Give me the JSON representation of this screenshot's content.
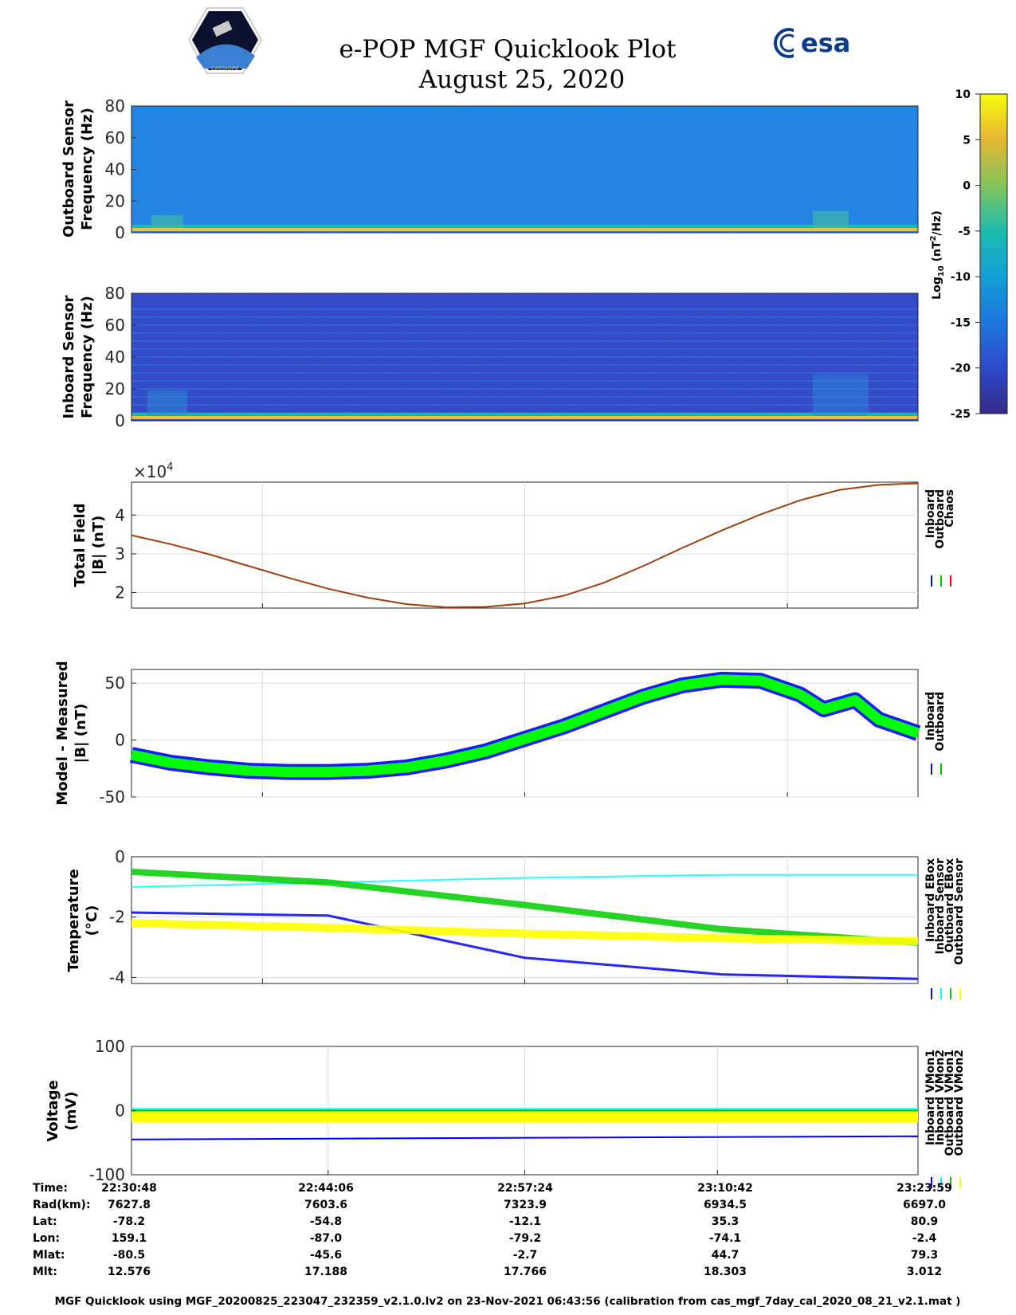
{
  "header": {
    "title": "e-POP MGF Quicklook Plot",
    "date": "August 25, 2020",
    "logo_left_text": "CASSIOPE",
    "logo_right_text": "esa"
  },
  "colorbar": {
    "label": "Log",
    "label_sub": "10",
    "label_units": "(nT",
    "label_sup": "2",
    "label_end": "/Hz)",
    "ticks": [
      "10",
      "5",
      "0",
      "-5",
      "-10",
      "-15",
      "-20",
      "-25"
    ],
    "range": [
      -25,
      10
    ]
  },
  "footer": "MGF Quicklook using MGF_20200825_223047_232359_v2.1.0.lv2 on 23-Nov-2021 06:43:56 (calibration from cas_mgf_7day_cal_2020_08_21_v2.1.mat )",
  "table": {
    "row_labels": [
      "Time:",
      "Rad(km):",
      "Lat:",
      "Lon:",
      "Mlat:",
      "Mlt:"
    ],
    "columns": [
      [
        "22:30:48",
        "7627.8",
        "-78.2",
        "159.1",
        "-80.5",
        "12.576"
      ],
      [
        "22:44:06",
        "7603.6",
        "-54.8",
        "-87.0",
        "-45.6",
        "17.188"
      ],
      [
        "22:57:24",
        "7323.9",
        "-12.1",
        "-79.2",
        "-2.7",
        "17.766"
      ],
      [
        "23:10:42",
        "6934.5",
        "35.3",
        "-74.1",
        "44.7",
        "18.303"
      ],
      [
        "23:23:59",
        "6697.0",
        "80.9",
        "-2.4",
        "79.3",
        "3.012"
      ]
    ]
  },
  "chart_data": [
    {
      "type": "heatmap",
      "ylabel_line1": "Outboard Sensor",
      "ylabel_line2": "Frequency (Hz)",
      "ylim": [
        0,
        80
      ],
      "yticks": [
        "80",
        "60",
        "40",
        "20",
        "0"
      ],
      "background_level": -14,
      "low_band_level": 3
    },
    {
      "type": "heatmap",
      "ylabel_line1": "Inboard Sensor",
      "ylabel_line2": "Frequency (Hz)",
      "ylim": [
        0,
        80
      ],
      "yticks": [
        "80",
        "60",
        "40",
        "20",
        "0"
      ],
      "background_level": -21,
      "harmonic_lines_hz": [
        5,
        10,
        15,
        20,
        25,
        30,
        35,
        40,
        45,
        50,
        55,
        60,
        65,
        70
      ]
    },
    {
      "type": "line",
      "ylabel_line1": "Total Field",
      "ylabel_line2": "|B| (nT)",
      "multiplier_base": "×10",
      "multiplier_exp": "4",
      "ylim": [
        1.6,
        4.85
      ],
      "yticks": [
        "4",
        "3",
        "2"
      ],
      "legend": [
        "Inboard",
        "Outboard",
        "Chaos"
      ],
      "legend_colors": [
        "#0000ff",
        "#00cc00",
        "#ff0000"
      ],
      "x": [
        0,
        0.05,
        0.1,
        0.15,
        0.2,
        0.25,
        0.3,
        0.35,
        0.4,
        0.45,
        0.5,
        0.55,
        0.6,
        0.65,
        0.7,
        0.75,
        0.8,
        0.85,
        0.9,
        0.95,
        1.0
      ],
      "series": [
        {
          "name": "Chaos",
          "values": [
            3.48,
            3.25,
            2.98,
            2.68,
            2.38,
            2.1,
            1.87,
            1.7,
            1.62,
            1.63,
            1.72,
            1.92,
            2.25,
            2.68,
            3.15,
            3.6,
            4.02,
            4.38,
            4.65,
            4.78,
            4.82
          ]
        }
      ]
    },
    {
      "type": "line",
      "ylabel_line1": "Model - Measured",
      "ylabel_line2": "|B| (nT)",
      "ylim": [
        -50,
        62
      ],
      "yticks": [
        "50",
        "0",
        "-50"
      ],
      "legend": [
        "Inboard",
        "Outboard"
      ],
      "legend_colors": [
        "#0000ff",
        "#00cc00"
      ],
      "x": [
        0,
        0.05,
        0.1,
        0.15,
        0.2,
        0.25,
        0.3,
        0.35,
        0.4,
        0.45,
        0.5,
        0.55,
        0.6,
        0.65,
        0.7,
        0.75,
        0.8,
        0.85,
        0.88,
        0.92,
        0.95,
        1.0
      ],
      "series": [
        {
          "name": "Outboard",
          "values": [
            -13,
            -20,
            -24,
            -27,
            -28,
            -28,
            -27,
            -24,
            -18,
            -10,
            1,
            12,
            25,
            38,
            48,
            53,
            52,
            40,
            27,
            35,
            18,
            6
          ]
        }
      ]
    },
    {
      "type": "line",
      "ylabel_line1": "Temperature",
      "ylabel_line2": "(°C)",
      "ylim": [
        -4.2,
        0
      ],
      "yticks": [
        "0",
        "-2",
        "-4"
      ],
      "legend": [
        "Inboard EBox",
        "Inboard Sensor",
        "Outboard EBox",
        "Outboard Sensor"
      ],
      "legend_colors": [
        "#0000ff",
        "#00ffff",
        "#00cc00",
        "#ffff00"
      ],
      "x": [
        0,
        0.25,
        0.5,
        0.75,
        1.0
      ],
      "series": [
        {
          "name": "Inboard EBox",
          "values": [
            -1.85,
            -1.95,
            -3.35,
            -3.9,
            -4.05
          ]
        },
        {
          "name": "Inboard Sensor",
          "values": [
            -1.0,
            -0.85,
            -0.7,
            -0.6,
            -0.6
          ]
        },
        {
          "name": "Outboard EBox",
          "values": [
            -0.5,
            -0.85,
            -1.6,
            -2.4,
            -2.85
          ]
        },
        {
          "name": "Outboard Sensor",
          "values": [
            -2.2,
            -2.35,
            -2.55,
            -2.7,
            -2.8
          ]
        }
      ]
    },
    {
      "type": "line",
      "ylabel_line1": "Voltage",
      "ylabel_line2": "(mV)",
      "ylim": [
        -100,
        100
      ],
      "yticks": [
        "100",
        "0",
        "-100"
      ],
      "legend": [
        "Inboard VMon1",
        "Inboard VMon2",
        "Outboard VMon1",
        "Outboard VMon2"
      ],
      "legend_colors": [
        "#0000ff",
        "#00ffff",
        "#00cc00",
        "#ffff00"
      ],
      "x": [
        0,
        1.0
      ],
      "series": [
        {
          "name": "Inboard VMon1",
          "values": [
            -45,
            -40
          ]
        },
        {
          "name": "Inboard VMon2",
          "values": [
            2,
            2
          ]
        },
        {
          "name": "Outboard VMon1",
          "values": [
            -5,
            -5
          ]
        },
        {
          "name": "Outboard VMon2",
          "values": [
            -10,
            -10
          ]
        }
      ]
    }
  ]
}
